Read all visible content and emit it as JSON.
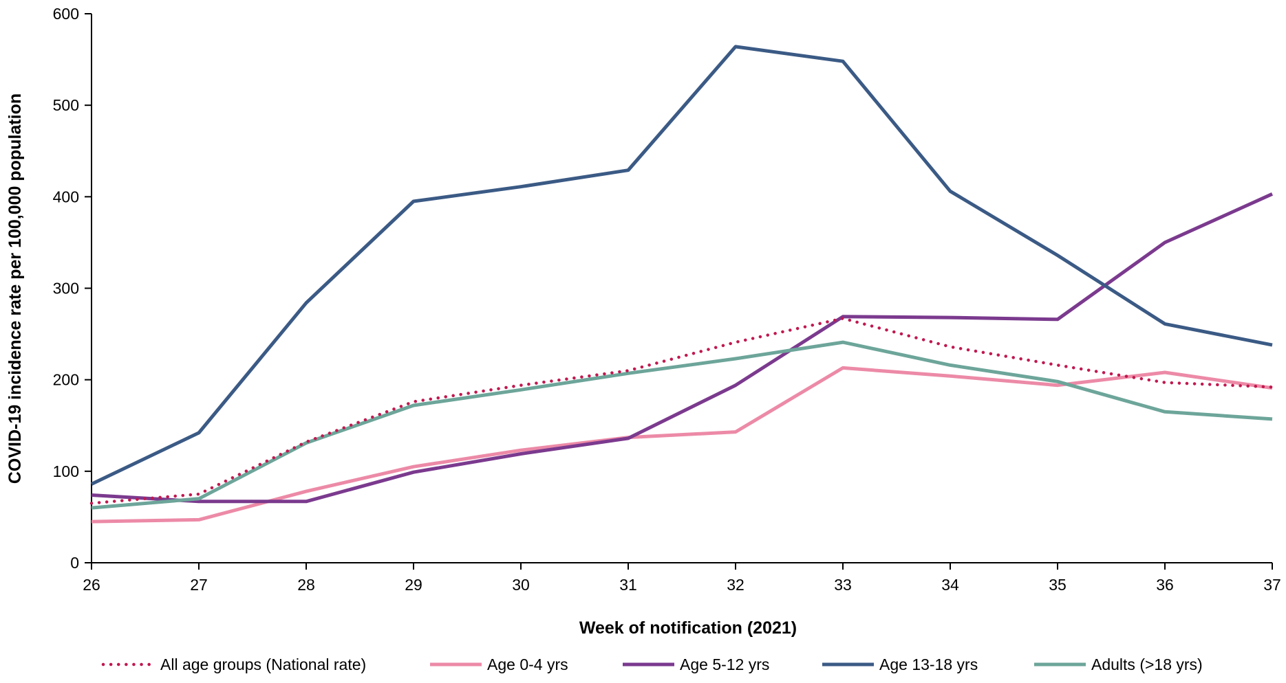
{
  "chart_data": {
    "type": "line",
    "title": "",
    "xlabel": "Week of notification (2021)",
    "ylabel": "COVID-19 incidence rate per 100,000 population",
    "x": [
      26,
      27,
      28,
      29,
      30,
      31,
      32,
      33,
      34,
      35,
      36,
      37
    ],
    "xlim": [
      26,
      37
    ],
    "ylim": [
      0,
      600
    ],
    "yticks": [
      0,
      100,
      200,
      300,
      400,
      500,
      600
    ],
    "grid": false,
    "legend_position": "bottom",
    "series": [
      {
        "name": "All age groups (National rate)",
        "color": "#c0194f",
        "style": "dotted",
        "values": [
          65,
          75,
          132,
          176,
          194,
          210,
          241,
          267,
          236,
          216,
          197,
          192
        ]
      },
      {
        "name": "Age 0-4 yrs",
        "color": "#ec8aa7",
        "style": "solid",
        "values": [
          45,
          47,
          78,
          105,
          123,
          137,
          143,
          213,
          204,
          194,
          208,
          191
        ]
      },
      {
        "name": "Age 5-12 yrs",
        "color": "#7b3a8e",
        "style": "solid",
        "values": [
          74,
          67,
          67,
          99,
          119,
          136,
          194,
          269,
          268,
          266,
          350,
          403
        ]
      },
      {
        "name": "Age 13-18 yrs",
        "color": "#3b5a85",
        "style": "solid",
        "values": [
          86,
          142,
          284,
          395,
          411,
          429,
          564,
          548,
          406,
          336,
          261,
          238
        ]
      },
      {
        "name": "Adults (>18 yrs)",
        "color": "#6da59a",
        "style": "solid",
        "values": [
          60,
          70,
          131,
          172,
          189,
          207,
          223,
          241,
          216,
          198,
          165,
          157
        ]
      }
    ]
  }
}
